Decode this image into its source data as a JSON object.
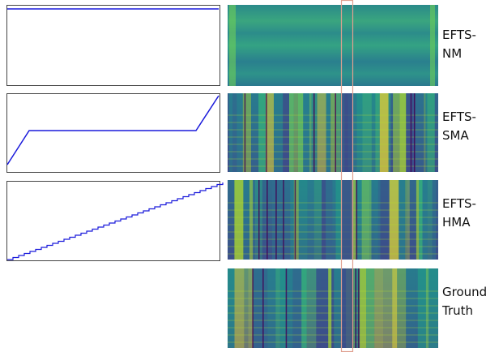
{
  "rows": [
    {
      "label_lines": [
        "EFTS-",
        "NM"
      ]
    },
    {
      "label_lines": [
        "EFTS-",
        "SMA"
      ]
    },
    {
      "label_lines": [
        "EFTS-",
        "HMA"
      ]
    },
    {
      "label_lines": [
        "Ground",
        "Truth"
      ]
    }
  ]
}
